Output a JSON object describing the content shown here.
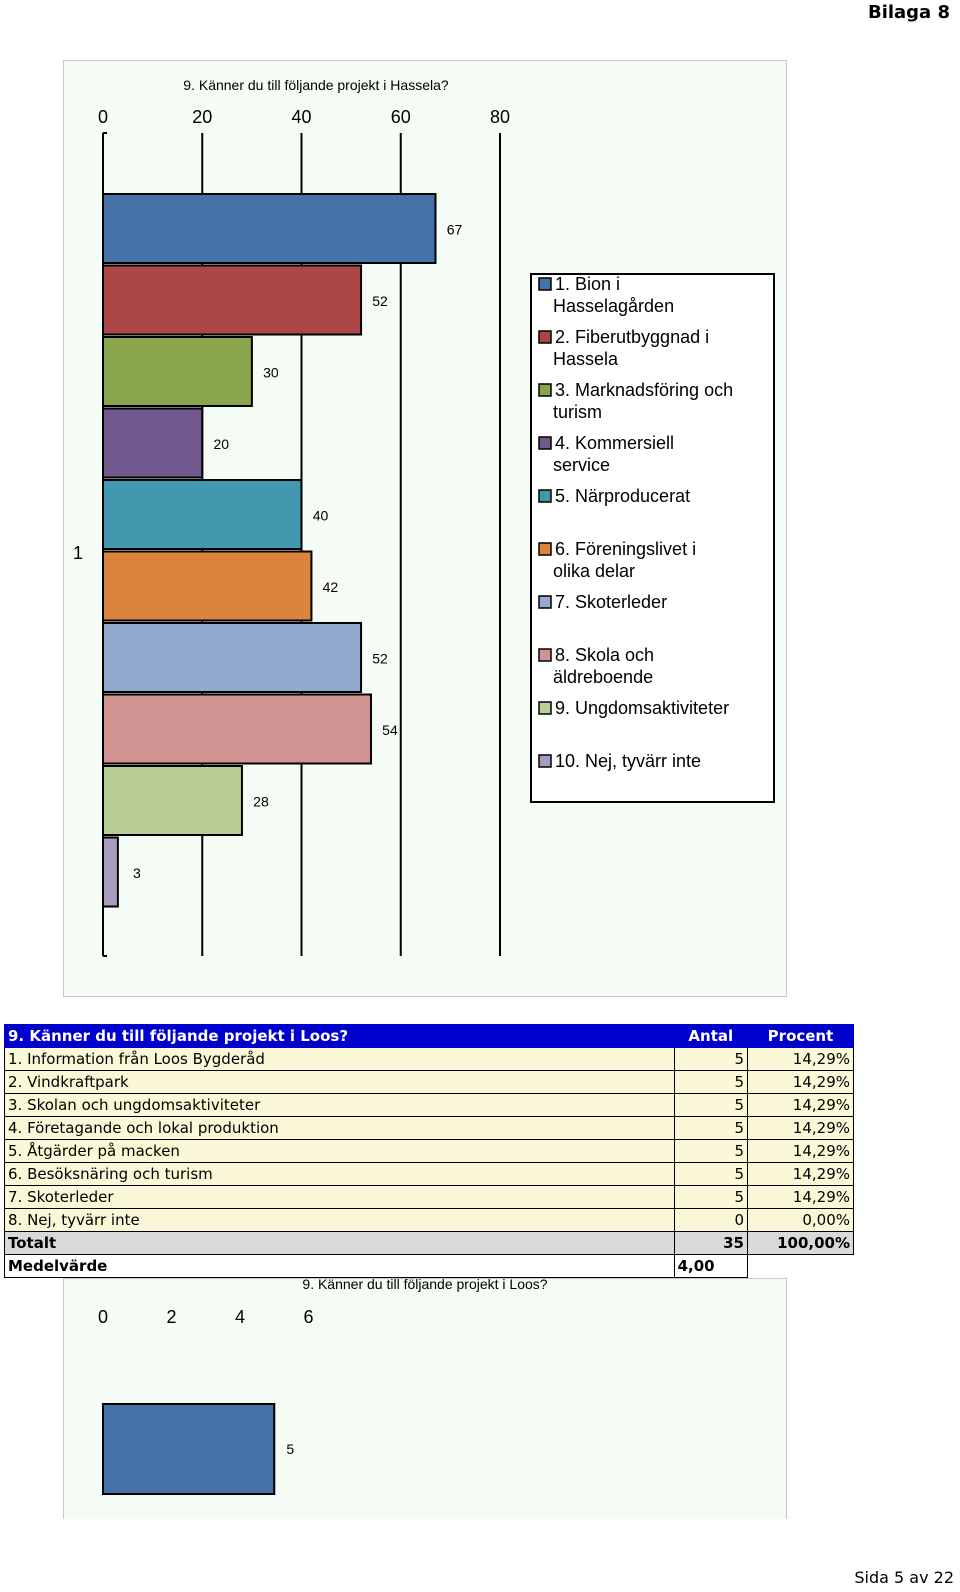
{
  "page": {
    "header": "Bilaga 8",
    "footer": "Sida 5 av 22"
  },
  "table": {
    "title": "9. Känner du till följande projekt i Loos?",
    "col_count": "Antal",
    "col_pct": "Procent",
    "rows": [
      {
        "label": "1. Information från Loos Bygderåd",
        "count": "5",
        "pct": "14,29%"
      },
      {
        "label": "2. Vindkraftpark",
        "count": "5",
        "pct": "14,29%"
      },
      {
        "label": "3. Skolan och ungdomsaktiviteter",
        "count": "5",
        "pct": "14,29%"
      },
      {
        "label": "4. Företagande och lokal produktion",
        "count": "5",
        "pct": "14,29%"
      },
      {
        "label": "5. Åtgärder på macken",
        "count": "5",
        "pct": "14,29%"
      },
      {
        "label": "6. Besöksnäring och turism",
        "count": "5",
        "pct": "14,29%"
      },
      {
        "label": "7. Skoterleder",
        "count": "5",
        "pct": "14,29%"
      },
      {
        "label": "8. Nej, tyvärr inte",
        "count": "0",
        "pct": "0,00%"
      }
    ],
    "total": {
      "label": "Totalt",
      "count": "35",
      "pct": "100,00%"
    },
    "mean": {
      "label": "Medelvärde",
      "value": "4,00"
    }
  },
  "chart_data": [
    {
      "type": "bar",
      "orientation": "horizontal",
      "title": "9. Känner du till följande projekt i Hassela?",
      "category": "1",
      "xlim": [
        0,
        80
      ],
      "xticks": [
        0,
        20,
        40,
        60,
        80
      ],
      "grid": true,
      "legend_position": "right",
      "series": [
        {
          "name": "1. Bion i Hasselagården",
          "value": 67,
          "color": "#4572a7"
        },
        {
          "name": "2. Fiberutbyggnad i Hassela",
          "value": 52,
          "color": "#aa4643"
        },
        {
          "name": "3. Marknadsföring och turism",
          "value": 30,
          "color": "#89a54e"
        },
        {
          "name": "4. Kommersiell service",
          "value": 20,
          "color": "#71588f"
        },
        {
          "name": "5. Närproducerat",
          "value": 40,
          "color": "#4198af"
        },
        {
          "name": "6. Föreningslivet i olika delar",
          "value": 42,
          "color": "#db843d"
        },
        {
          "name": "7. Skoterleder",
          "value": 52,
          "color": "#93a9cf"
        },
        {
          "name": "8. Skola och äldreboende",
          "value": 54,
          "color": "#d19392"
        },
        {
          "name": "9. Ungdomsaktiviteter",
          "value": 28,
          "color": "#b9cd96"
        },
        {
          "name": "10. Nej, tyvärr inte",
          "value": 3,
          "color": "#a99bbd"
        }
      ]
    },
    {
      "type": "bar",
      "orientation": "horizontal",
      "title": "9. Känner du till följande projekt i Loos?",
      "xticks": [
        0,
        2,
        4,
        6
      ],
      "grid": true,
      "series": [
        {
          "value": 5,
          "color": "#4572a7"
        }
      ]
    }
  ]
}
